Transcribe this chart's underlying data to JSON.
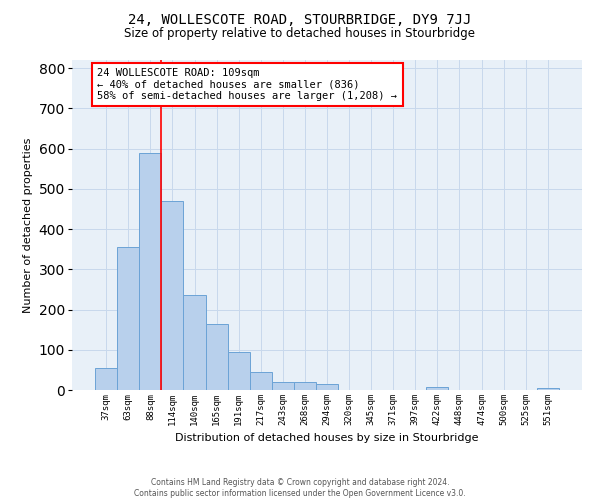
{
  "title": "24, WOLLESCOTE ROAD, STOURBRIDGE, DY9 7JJ",
  "subtitle": "Size of property relative to detached houses in Stourbridge",
  "xlabel": "Distribution of detached houses by size in Stourbridge",
  "ylabel": "Number of detached properties",
  "footer_line1": "Contains HM Land Registry data © Crown copyright and database right 2024.",
  "footer_line2": "Contains public sector information licensed under the Open Government Licence v3.0.",
  "bar_labels": [
    "37sqm",
    "63sqm",
    "88sqm",
    "114sqm",
    "140sqm",
    "165sqm",
    "191sqm",
    "217sqm",
    "243sqm",
    "268sqm",
    "294sqm",
    "320sqm",
    "345sqm",
    "371sqm",
    "397sqm",
    "422sqm",
    "448sqm",
    "474sqm",
    "500sqm",
    "525sqm",
    "551sqm"
  ],
  "bar_values": [
    55,
    355,
    590,
    470,
    237,
    163,
    95,
    45,
    20,
    20,
    15,
    0,
    0,
    0,
    0,
    8,
    0,
    0,
    0,
    0,
    5
  ],
  "bar_color": "#b8d0ec",
  "bar_edge_color": "#6ba3d6",
  "ylim": [
    0,
    820
  ],
  "yticks": [
    0,
    100,
    200,
    300,
    400,
    500,
    600,
    700,
    800
  ],
  "vline_position": 2.5,
  "annotation_line1": "24 WOLLESCOTE ROAD: 109sqm",
  "annotation_line2": "← 40% of detached houses are smaller (836)",
  "annotation_line3": "58% of semi-detached houses are larger (1,208) →",
  "grid_color": "#c8d8ec",
  "background_color": "#e8f0f8"
}
